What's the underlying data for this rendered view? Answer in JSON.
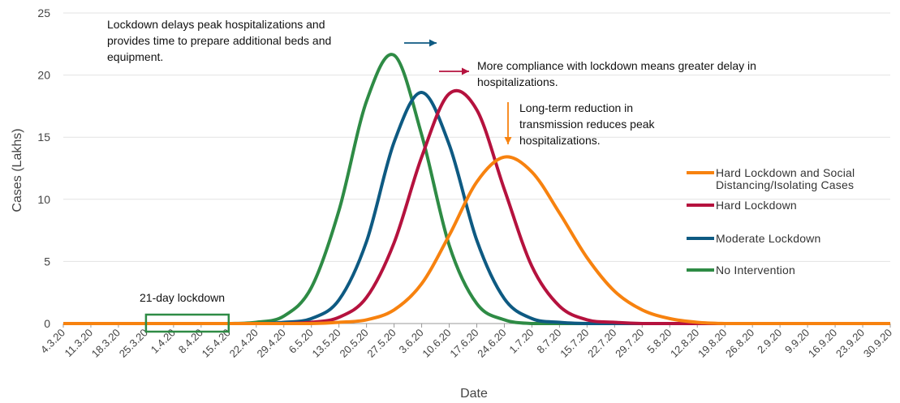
{
  "chart_data": {
    "type": "line",
    "xlabel": "Date",
    "ylabel": "Cases (Lakhs)",
    "ylim": [
      0,
      25
    ],
    "yticks": [
      0,
      5,
      10,
      15,
      20,
      25
    ],
    "grid": "horizontal",
    "legend_position": "right",
    "categories": [
      "4.3.20",
      "11.3.20",
      "18.3.20",
      "25.3.20",
      "1.4.20",
      "8.4.20",
      "15.4.20",
      "22.4.20",
      "29.4.20",
      "6.5.20",
      "13.5.20",
      "20.5.20",
      "27.5.20",
      "3.6.20",
      "10.6.20",
      "17.6.20",
      "24.6.20",
      "1.7.20",
      "8.7.20",
      "15.7.20",
      "22.7.20",
      "29.7.20",
      "5.8.20",
      "12.8.20",
      "19.8.20",
      "26.8.20",
      "2.9.20",
      "9.9.20",
      "16.9.20",
      "23.9.20",
      "30.9.20"
    ],
    "series": [
      {
        "name": "Hard Lockdown and Social\nDistancing/Isolating Cases",
        "color": "#f7820f",
        "values": [
          0,
          0,
          0,
          0,
          0,
          0,
          0,
          0,
          0,
          0,
          0.1,
          0.3,
          1.1,
          3.2,
          7.1,
          11.4,
          13.4,
          12.2,
          8.9,
          5.3,
          2.6,
          1.1,
          0.4,
          0.1,
          0,
          0,
          0,
          0,
          0,
          0,
          0
        ]
      },
      {
        "name": "Hard Lockdown",
        "color": "#b5123e",
        "values": [
          0,
          0,
          0,
          0,
          0,
          0,
          0,
          0,
          0,
          0.1,
          0.5,
          2.1,
          6.5,
          13.4,
          18.5,
          17.2,
          10.8,
          4.6,
          1.4,
          0.3,
          0.1,
          0,
          0,
          0,
          0,
          0,
          0,
          0,
          0,
          0,
          0
        ]
      },
      {
        "name": "Moderate Lockdown",
        "color": "#0e5a82",
        "values": [
          0,
          0,
          0,
          0,
          0,
          0,
          0,
          0,
          0.1,
          0.4,
          1.9,
          6.6,
          14.6,
          18.6,
          14.4,
          6.7,
          2.0,
          0.4,
          0.1,
          0,
          0,
          0,
          0,
          0,
          0,
          0,
          0,
          0,
          0,
          0,
          0
        ]
      },
      {
        "name": "No Intervention",
        "color": "#2e8b45",
        "values": [
          0,
          0,
          0,
          0,
          0,
          0,
          0,
          0.1,
          0.6,
          2.9,
          9.1,
          17.9,
          21.6,
          15.2,
          6.3,
          1.6,
          0.3,
          0,
          0,
          0,
          0,
          0,
          0,
          0,
          0,
          0,
          0,
          0,
          0,
          0,
          0
        ]
      }
    ],
    "annotations": {
      "a1": "Lockdown delays peak hospitalizations and\nprovides time to prepare additional beds and\nequipment.",
      "a2": "More compliance with lockdown means greater delay in\nhospitalizations.",
      "a3": "Long-term reduction in\ntransmission reduces peak\nhospitalizations.",
      "lockdown_label": "21-day lockdown"
    },
    "lockdown_box": {
      "start": "25.3.20",
      "end": "15.4.20",
      "color": "#2e8b45"
    },
    "arrow_colors": {
      "a1": "#0e5a82",
      "a2": "#b5123e",
      "a3": "#f7820f"
    }
  }
}
